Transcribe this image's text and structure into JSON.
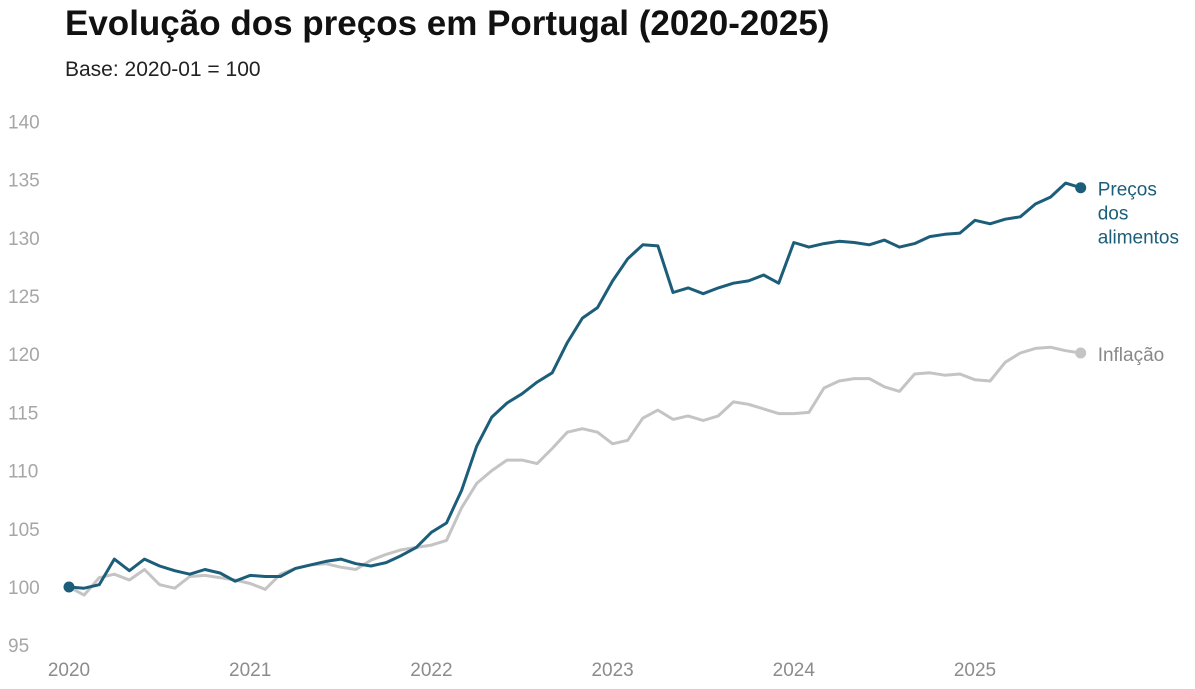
{
  "title": "Evolução dos preços em Portugal (2020-2025)",
  "subtitle": "Base: 2020-01 = 100",
  "chart_data": {
    "type": "line",
    "title": "Evolução dos preços em Portugal (2020-2025)",
    "subtitle": "Base: 2020-01 = 100",
    "xlabel": "",
    "ylabel": "",
    "ylim": [
      95,
      140
    ],
    "yticks": [
      95,
      100,
      105,
      110,
      115,
      120,
      125,
      130,
      135,
      140
    ],
    "xticks": [
      "2020",
      "2021",
      "2022",
      "2023",
      "2024",
      "2025"
    ],
    "x": [
      "2020-01",
      "2020-02",
      "2020-03",
      "2020-04",
      "2020-05",
      "2020-06",
      "2020-07",
      "2020-08",
      "2020-09",
      "2020-10",
      "2020-11",
      "2020-12",
      "2021-01",
      "2021-02",
      "2021-03",
      "2021-04",
      "2021-05",
      "2021-06",
      "2021-07",
      "2021-08",
      "2021-09",
      "2021-10",
      "2021-11",
      "2021-12",
      "2022-01",
      "2022-02",
      "2022-03",
      "2022-04",
      "2022-05",
      "2022-06",
      "2022-07",
      "2022-08",
      "2022-09",
      "2022-10",
      "2022-11",
      "2022-12",
      "2023-01",
      "2023-02",
      "2023-03",
      "2023-04",
      "2023-05",
      "2023-06",
      "2023-07",
      "2023-08",
      "2023-09",
      "2023-10",
      "2023-11",
      "2023-12",
      "2024-01",
      "2024-02",
      "2024-03",
      "2024-04",
      "2024-05",
      "2024-06",
      "2024-07",
      "2024-08",
      "2024-09",
      "2024-10",
      "2024-11",
      "2024-12",
      "2025-01",
      "2025-02",
      "2025-03",
      "2025-04",
      "2025-05",
      "2025-06",
      "2025-07",
      "2025-08"
    ],
    "grid": false,
    "legend": "direct labels at line ends",
    "series": [
      {
        "name": "Preços dos alimentos",
        "label_lines": [
          "Preços",
          "dos",
          "alimentos"
        ],
        "color": "#1c5e7a",
        "values": [
          100.0,
          99.9,
          100.2,
          102.4,
          101.4,
          102.4,
          101.8,
          101.4,
          101.1,
          101.5,
          101.2,
          100.5,
          101.0,
          100.9,
          100.9,
          101.6,
          101.9,
          102.2,
          102.4,
          102.0,
          101.8,
          102.1,
          102.7,
          103.4,
          104.7,
          105.5,
          108.3,
          112.1,
          114.6,
          115.8,
          116.6,
          117.6,
          118.4,
          121.0,
          123.1,
          124.0,
          126.3,
          128.2,
          129.4,
          129.3,
          125.3,
          125.7,
          125.2,
          125.7,
          126.1,
          126.3,
          126.8,
          126.1,
          129.6,
          129.2,
          129.5,
          129.7,
          129.6,
          129.4,
          129.8,
          129.2,
          129.5,
          130.1,
          130.3,
          130.4,
          131.5,
          131.2,
          131.6,
          131.8,
          132.9,
          133.5,
          134.7,
          134.3
        ]
      },
      {
        "name": "Inflação",
        "label_lines": [
          "Inflação"
        ],
        "color": "#c4c4c4",
        "values": [
          100.0,
          99.3,
          100.8,
          101.1,
          100.6,
          101.5,
          100.2,
          99.9,
          100.9,
          101.0,
          100.8,
          100.6,
          100.3,
          99.8,
          101.1,
          101.6,
          101.9,
          102.0,
          101.7,
          101.5,
          102.3,
          102.8,
          103.2,
          103.4,
          103.6,
          104.0,
          106.8,
          108.9,
          110.0,
          110.9,
          110.9,
          110.6,
          111.9,
          113.3,
          113.6,
          113.3,
          112.3,
          112.6,
          114.5,
          115.2,
          114.4,
          114.7,
          114.3,
          114.7,
          115.9,
          115.7,
          115.3,
          114.9,
          114.9,
          115.0,
          117.1,
          117.7,
          117.9,
          117.9,
          117.2,
          116.8,
          118.3,
          118.4,
          118.2,
          118.3,
          117.8,
          117.7,
          119.3,
          120.1,
          120.5,
          120.6,
          120.3,
          120.1
        ]
      }
    ]
  }
}
